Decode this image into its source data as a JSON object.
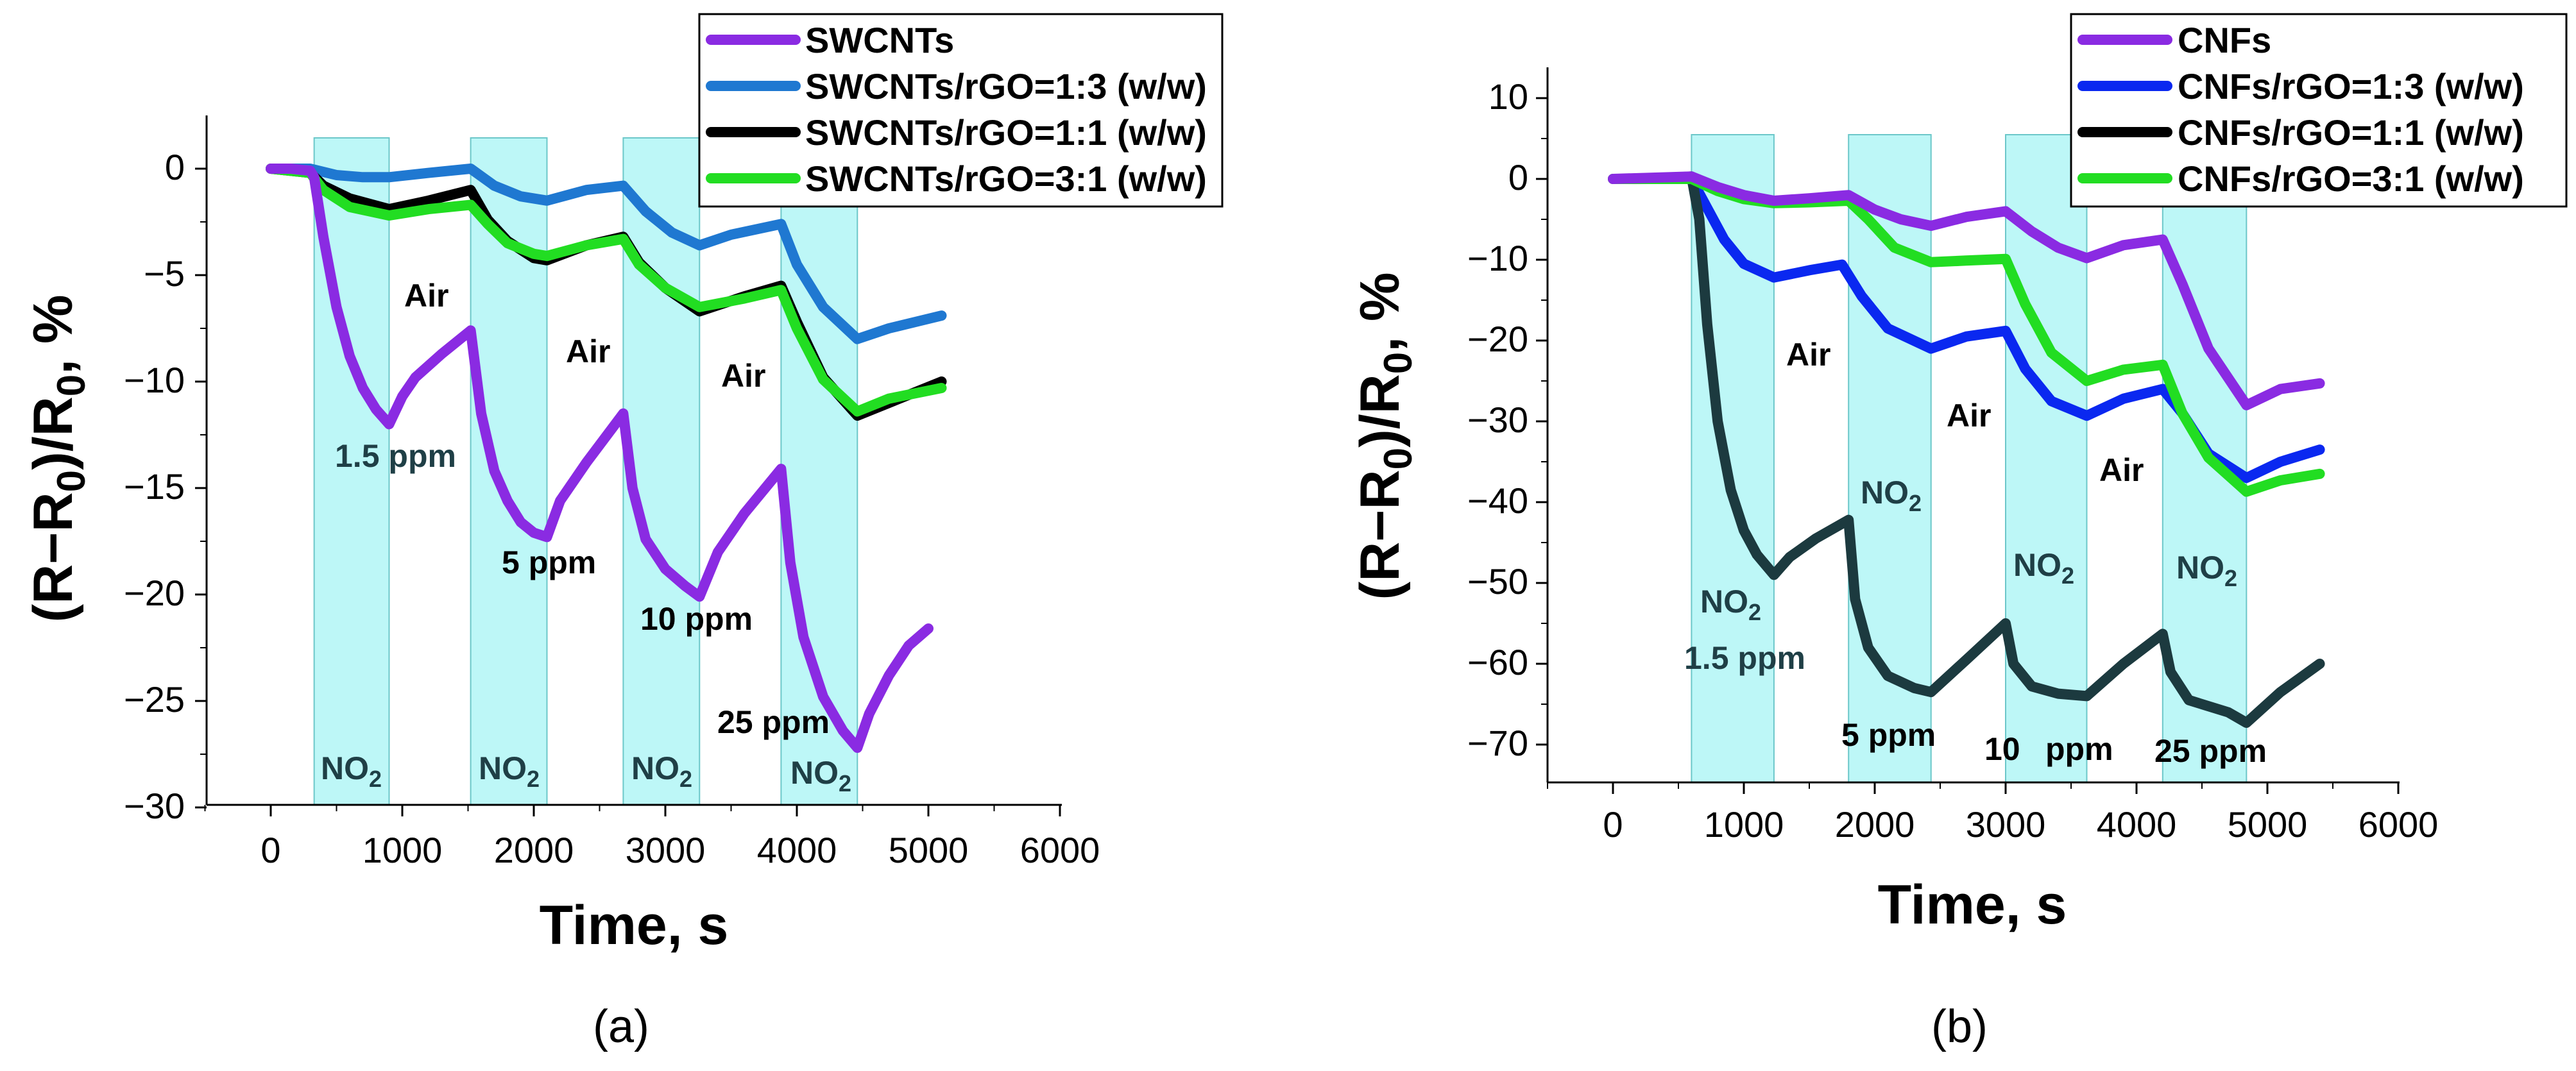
{
  "chart_data": [
    {
      "panel": "(a)",
      "type": "line",
      "xlabel": "Time, s",
      "ylabel": "(R−R0)/R0, %",
      "xlim": [
        -500,
        6000
      ],
      "ylim": [
        -30,
        2.5
      ],
      "xticks": [
        0,
        1000,
        2000,
        3000,
        4000,
        5000,
        6000
      ],
      "yticks": [
        0,
        -5,
        -10,
        -15,
        -20,
        -25,
        -30
      ],
      "gas_windows": [
        [
          330,
          900
        ],
        [
          1520,
          2100
        ],
        [
          2680,
          3260
        ],
        [
          3880,
          4460
        ]
      ],
      "legend_position": "top-right",
      "series": [
        {
          "name": "SWCNTs",
          "color": "#8a2be2",
          "points": [
            [
              0,
              0
            ],
            [
              150,
              0
            ],
            [
              300,
              -0.1
            ],
            [
              330,
              -0.4
            ],
            [
              400,
              -3.2
            ],
            [
              500,
              -6.5
            ],
            [
              600,
              -8.8
            ],
            [
              700,
              -10.3
            ],
            [
              800,
              -11.3
            ],
            [
              900,
              -12.0
            ],
            [
              1000,
              -10.7
            ],
            [
              1100,
              -9.8
            ],
            [
              1300,
              -8.7
            ],
            [
              1520,
              -7.6
            ],
            [
              1600,
              -11.5
            ],
            [
              1700,
              -14.2
            ],
            [
              1800,
              -15.6
            ],
            [
              1900,
              -16.6
            ],
            [
              2000,
              -17.1
            ],
            [
              2100,
              -17.3
            ],
            [
              2200,
              -15.6
            ],
            [
              2400,
              -13.8
            ],
            [
              2680,
              -11.5
            ],
            [
              2750,
              -15.0
            ],
            [
              2850,
              -17.4
            ],
            [
              3000,
              -18.8
            ],
            [
              3150,
              -19.6
            ],
            [
              3260,
              -20.1
            ],
            [
              3400,
              -18.0
            ],
            [
              3600,
              -16.2
            ],
            [
              3880,
              -14.1
            ],
            [
              3950,
              -18.5
            ],
            [
              4050,
              -22.0
            ],
            [
              4200,
              -24.8
            ],
            [
              4350,
              -26.4
            ],
            [
              4460,
              -27.2
            ],
            [
              4550,
              -25.6
            ],
            [
              4700,
              -23.8
            ],
            [
              4850,
              -22.4
            ],
            [
              5000,
              -21.6
            ]
          ]
        },
        {
          "name": "SWCNTs/rGO=1:3 (w/w)",
          "color": "#1f78d1",
          "points": [
            [
              0,
              0
            ],
            [
              300,
              0
            ],
            [
              500,
              -0.3
            ],
            [
              700,
              -0.4
            ],
            [
              900,
              -0.4
            ],
            [
              1200,
              -0.2
            ],
            [
              1520,
              0
            ],
            [
              1700,
              -0.8
            ],
            [
              1900,
              -1.3
            ],
            [
              2100,
              -1.5
            ],
            [
              2400,
              -1.0
            ],
            [
              2680,
              -0.8
            ],
            [
              2850,
              -2.0
            ],
            [
              3050,
              -3.0
            ],
            [
              3260,
              -3.6
            ],
            [
              3500,
              -3.1
            ],
            [
              3880,
              -2.6
            ],
            [
              4000,
              -4.5
            ],
            [
              4200,
              -6.5
            ],
            [
              4460,
              -8.0
            ],
            [
              4700,
              -7.5
            ],
            [
              5100,
              -6.9
            ]
          ]
        },
        {
          "name": "SWCNTs/rGO=1:1 (w/w)",
          "color": "#000000",
          "points": [
            [
              0,
              0
            ],
            [
              300,
              -0.2
            ],
            [
              400,
              -0.8
            ],
            [
              600,
              -1.4
            ],
            [
              900,
              -1.9
            ],
            [
              1200,
              -1.5
            ],
            [
              1520,
              -1.0
            ],
            [
              1650,
              -2.4
            ],
            [
              1800,
              -3.4
            ],
            [
              2000,
              -4.2
            ],
            [
              2100,
              -4.3
            ],
            [
              2400,
              -3.6
            ],
            [
              2680,
              -3.2
            ],
            [
              2800,
              -4.4
            ],
            [
              3000,
              -5.6
            ],
            [
              3260,
              -6.7
            ],
            [
              3600,
              -6.0
            ],
            [
              3880,
              -5.5
            ],
            [
              4000,
              -7.2
            ],
            [
              4200,
              -9.8
            ],
            [
              4460,
              -11.6
            ],
            [
              4700,
              -11.0
            ],
            [
              5100,
              -10.0
            ]
          ]
        },
        {
          "name": "SWCNTs/rGO=3:1 (w/w)",
          "color": "#22dd22",
          "points": [
            [
              0,
              0
            ],
            [
              300,
              -0.2
            ],
            [
              400,
              -1.0
            ],
            [
              600,
              -1.8
            ],
            [
              900,
              -2.2
            ],
            [
              1200,
              -1.9
            ],
            [
              1520,
              -1.7
            ],
            [
              1650,
              -2.6
            ],
            [
              1800,
              -3.5
            ],
            [
              2000,
              -4.0
            ],
            [
              2100,
              -4.1
            ],
            [
              2400,
              -3.6
            ],
            [
              2680,
              -3.3
            ],
            [
              2800,
              -4.5
            ],
            [
              3000,
              -5.6
            ],
            [
              3260,
              -6.5
            ],
            [
              3600,
              -6.1
            ],
            [
              3880,
              -5.7
            ],
            [
              4000,
              -7.5
            ],
            [
              4200,
              -9.9
            ],
            [
              4460,
              -11.4
            ],
            [
              4700,
              -10.8
            ],
            [
              5100,
              -10.3
            ]
          ]
        }
      ],
      "annotations": [
        "Air",
        "Air",
        "Air",
        "1.5 ppm",
        "5 ppm",
        "10 ppm",
        "25 ppm",
        "NO2",
        "NO2",
        "NO2",
        "NO2"
      ]
    },
    {
      "panel": "(b)",
      "type": "line",
      "xlabel": "Time, s",
      "ylabel": "(R−R0)/R0, %",
      "xlim": [
        -500,
        6000
      ],
      "ylim": [
        -75,
        12
      ],
      "xticks": [
        0,
        1000,
        2000,
        3000,
        4000,
        5000,
        6000
      ],
      "yticks": [
        10,
        0,
        -10,
        -20,
        -30,
        -40,
        -50,
        -60,
        -70
      ],
      "gas_windows": [
        [
          600,
          1230
        ],
        [
          1800,
          2430
        ],
        [
          3000,
          3620
        ],
        [
          4200,
          4840
        ]
      ],
      "legend_position": "top-right",
      "series": [
        {
          "name": "CNFs",
          "color": "#8a2be2",
          "points": [
            [
              0,
              0
            ],
            [
              600,
              0.3
            ],
            [
              800,
              -1.0
            ],
            [
              1000,
              -2.0
            ],
            [
              1230,
              -2.7
            ],
            [
              1500,
              -2.4
            ],
            [
              1800,
              -2.0
            ],
            [
              2000,
              -3.8
            ],
            [
              2200,
              -5.0
            ],
            [
              2430,
              -5.8
            ],
            [
              2700,
              -4.7
            ],
            [
              3000,
              -4.0
            ],
            [
              3200,
              -6.5
            ],
            [
              3400,
              -8.5
            ],
            [
              3620,
              -9.8
            ],
            [
              3900,
              -8.2
            ],
            [
              4200,
              -7.5
            ],
            [
              4350,
              -13.0
            ],
            [
              4550,
              -21.0
            ],
            [
              4840,
              -28.0
            ],
            [
              5100,
              -26.0
            ],
            [
              5400,
              -25.3
            ]
          ]
        },
        {
          "name": "CNFs/rGO=1:3 (w/w)",
          "color": "#0a28f0",
          "points": [
            [
              0,
              0
            ],
            [
              600,
              0
            ],
            [
              700,
              -3.0
            ],
            [
              850,
              -7.5
            ],
            [
              1000,
              -10.5
            ],
            [
              1230,
              -12.2
            ],
            [
              1500,
              -11.3
            ],
            [
              1750,
              -10.6
            ],
            [
              1900,
              -14.5
            ],
            [
              2100,
              -18.5
            ],
            [
              2430,
              -21.0
            ],
            [
              2700,
              -19.5
            ],
            [
              3000,
              -18.8
            ],
            [
              3150,
              -23.5
            ],
            [
              3350,
              -27.5
            ],
            [
              3620,
              -29.3
            ],
            [
              3900,
              -27.2
            ],
            [
              4200,
              -26.0
            ],
            [
              4350,
              -29.0
            ],
            [
              4550,
              -34.0
            ],
            [
              4840,
              -37.0
            ],
            [
              5100,
              -35.0
            ],
            [
              5400,
              -33.5
            ]
          ]
        },
        {
          "name": "CNFs/rGO=1:1 (w/w)",
          "color": "#1c3a3f",
          "points": [
            [
              0,
              0
            ],
            [
              300,
              0
            ],
            [
              600,
              0.3
            ],
            [
              660,
              -5.0
            ],
            [
              720,
              -18.0
            ],
            [
              800,
              -30.0
            ],
            [
              900,
              -38.5
            ],
            [
              1000,
              -43.5
            ],
            [
              1100,
              -46.5
            ],
            [
              1230,
              -49.0
            ],
            [
              1350,
              -46.8
            ],
            [
              1550,
              -44.5
            ],
            [
              1800,
              -42.2
            ],
            [
              1850,
              -52.0
            ],
            [
              1950,
              -58.0
            ],
            [
              2100,
              -61.5
            ],
            [
              2300,
              -63.0
            ],
            [
              2430,
              -63.5
            ],
            [
              2700,
              -59.5
            ],
            [
              3000,
              -55.0
            ],
            [
              3060,
              -60.0
            ],
            [
              3200,
              -62.8
            ],
            [
              3400,
              -63.7
            ],
            [
              3620,
              -64.0
            ],
            [
              3900,
              -60.0
            ],
            [
              4200,
              -56.3
            ],
            [
              4260,
              -61.0
            ],
            [
              4400,
              -64.5
            ],
            [
              4700,
              -66.0
            ],
            [
              4840,
              -67.3
            ],
            [
              5100,
              -63.5
            ],
            [
              5400,
              -60.0
            ]
          ]
        },
        {
          "name": "CNFs/rGO=3:1 (w/w)",
          "color": "#22dd22",
          "points": [
            [
              0,
              0
            ],
            [
              600,
              0
            ],
            [
              800,
              -1.5
            ],
            [
              1000,
              -2.5
            ],
            [
              1230,
              -3.0
            ],
            [
              1500,
              -2.9
            ],
            [
              1800,
              -2.7
            ],
            [
              1950,
              -5.0
            ],
            [
              2150,
              -8.5
            ],
            [
              2430,
              -10.3
            ],
            [
              2700,
              -10.1
            ],
            [
              3000,
              -9.9
            ],
            [
              3150,
              -15.5
            ],
            [
              3350,
              -21.5
            ],
            [
              3620,
              -25.0
            ],
            [
              3900,
              -23.6
            ],
            [
              4200,
              -23.0
            ],
            [
              4350,
              -29.0
            ],
            [
              4550,
              -34.5
            ],
            [
              4840,
              -38.7
            ],
            [
              5100,
              -37.3
            ],
            [
              5400,
              -36.5
            ]
          ]
        }
      ],
      "annotations": [
        "Air",
        "Air",
        "Air",
        "NO2",
        "NO2",
        "NO2",
        "NO2",
        "1.5 ppm",
        "5 ppm",
        "10",
        "ppm",
        "25 ppm"
      ]
    }
  ],
  "panel_a": {
    "caption": "(a)",
    "x_title": "Time, s",
    "y_title": {
      "main": "(R−R",
      "sub1": "0",
      "mid": ")/R",
      "sub2": "0",
      "end": ", %"
    },
    "xtick_labels": [
      "0",
      "1000",
      "2000",
      "3000",
      "4000",
      "5000",
      "6000"
    ],
    "ytick_labels": [
      "0",
      "−5",
      "−10",
      "−15",
      "−20",
      "−25",
      "−30"
    ],
    "legend": [
      "SWCNTs",
      "SWCNTs/rGO=1:3 (w/w)",
      "SWCNTs/rGO=1:1 (w/w)",
      "SWCNTs/rGO=3:1 (w/w)"
    ],
    "labels": {
      "air1": "Air",
      "air2": "Air",
      "air3": "Air",
      "c1": "1.5 ppm",
      "c2": "5 ppm",
      "c3": "10 ppm",
      "c4": "25 ppm",
      "no": "NO",
      "two": "2"
    }
  },
  "panel_b": {
    "caption": "(b)",
    "x_title": "Time, s",
    "y_title": {
      "main": "(R−R",
      "sub1": "0",
      "mid": ")/R",
      "sub2": "0",
      "end": ", %"
    },
    "xtick_labels": [
      "0",
      "1000",
      "2000",
      "3000",
      "4000",
      "5000",
      "6000"
    ],
    "ytick_labels": [
      "10",
      "0",
      "−10",
      "−20",
      "−30",
      "−40",
      "−50",
      "−60",
      "−70"
    ],
    "legend": [
      "CNFs",
      "CNFs/rGO=1:3 (w/w)",
      "CNFs/rGO=1:1 (w/w)",
      "CNFs/rGO=3:1 (w/w)"
    ],
    "labels": {
      "air1": "Air",
      "air2": "Air",
      "air3": "Air",
      "c1": "1.5 ppm",
      "c2": "5 ppm",
      "c3a": "10",
      "c3b": "ppm",
      "c4": "25 ppm",
      "no": "NO",
      "two": "2"
    }
  },
  "style": {
    "gas_fill": "#bdf7f7",
    "gas_stroke": "#6cc7c9",
    "axis_color": "#000000"
  }
}
